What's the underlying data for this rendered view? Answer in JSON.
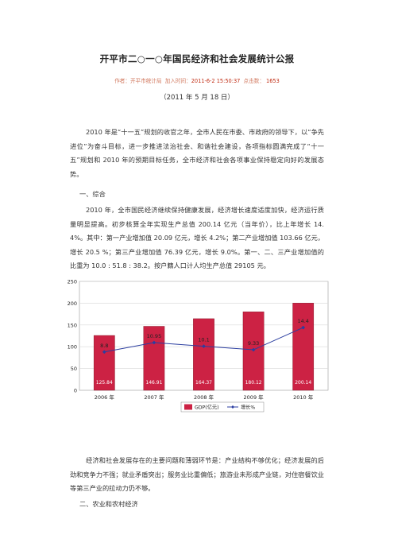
{
  "document": {
    "title": "开平市二○一○年国民经济和社会发展统计公报",
    "meta": {
      "author_label": "作者：开平市统计局",
      "time_label": "加入时间：",
      "time_value": "2011-6-2 15:50:37",
      "clicks_label": "点击数：",
      "clicks_value": "1653"
    },
    "date": "（2011 年 5 月 18 日）",
    "intro": "2010 年是“十一五”规划的收官之年，全市人民在市委、市政府的领导下，以“争先进位”为奋斗目标，进一步推进法治社会、和谐社会建设，各项指标圆满完成了“十一五”规划和 2010 年的预期目标任务，全市经济和社会各项事业保持稳定向好的发展态势。",
    "section1_heading": "一、综合",
    "section1_text": "2010 年，全市国民经济继续保持健康发展，经济增长速度适度加快，经济运行质量明显提高。初步核算全年实现生产总值 200.14 亿元（当年价），比上年增长 14.4%。其中：第一产业增加值 20.09 亿元，增长 4.2%；第二产业增加值 103.66 亿元，增长 20.5 %；第三产业增加值 76.39 亿元，增长 9.0%。第一、二、三产业增加值的比重为 10.0 : 51.8 : 38.2。按户籍人口计人均生产总值 29105 元。",
    "problems_text": "经济和社会发展存在的主要问题和薄弱环节是：产业结构不够优化；经济发展的后劲和竞争力不强；就业矛盾突出；服务业比重偏低；旅游业未形成产业链，对住宿餐饮业等第三产业的拉动力仍不够。",
    "section2_heading": "二、农业和农村经济"
  },
  "chart_data": {
    "type": "bar",
    "categories": [
      "2006 年",
      "2007 年",
      "2008 年",
      "2009 年",
      "2010 年"
    ],
    "series": [
      {
        "name": "GDP(亿元)",
        "type": "bar",
        "values": [
          125.84,
          146.91,
          164.37,
          180.12,
          200.14
        ],
        "labels": [
          "125.84",
          "146.91",
          "164.37",
          "180.12",
          "200.14"
        ],
        "color": "#cc2244"
      },
      {
        "name": "增长%",
        "type": "line",
        "values": [
          8.8,
          10.95,
          10.1,
          9.3,
          14.4
        ],
        "labels": [
          "8.8",
          "10.95",
          "10.1",
          "9.33",
          "14.4"
        ],
        "color": "#2b3ea0"
      }
    ],
    "yticks": [
      "0",
      "50",
      "100",
      "150",
      "200",
      "250"
    ],
    "ylim": [
      0,
      250
    ],
    "legend_position": "bottom",
    "grid": true
  }
}
